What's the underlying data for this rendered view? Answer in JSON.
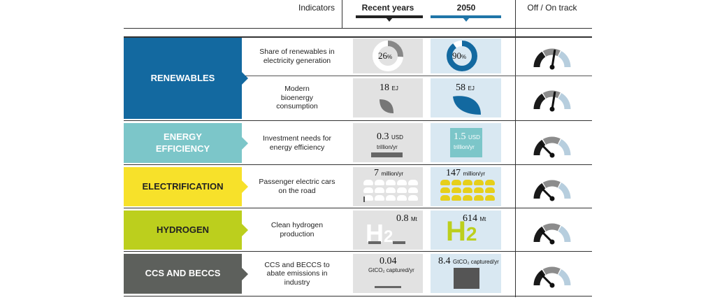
{
  "header": {
    "indicators": "Indicators",
    "recent_years": "Recent years",
    "year_2050": "2050",
    "track": "Off / On track"
  },
  "colors": {
    "renewables": "#1369a0",
    "efficiency": "#7cc6c9",
    "electrification": "#f7e12a",
    "hydrogen": "#bccf1d",
    "ccs": "#5d605c",
    "recent_marker": "#222222",
    "future_marker": "#1f75a8",
    "gauge_dark": "#1a1a1a",
    "gauge_mid": "#8c8c8c",
    "gauge_light": "#b7cede"
  },
  "categories": [
    {
      "id": "renewables",
      "label": "RENEWABLES"
    },
    {
      "id": "efficiency",
      "label_line1": "ENERGY",
      "label_line2": "EFFICIENCY"
    },
    {
      "id": "electrification",
      "label": "ELECTRIFICATION"
    },
    {
      "id": "hydrogen",
      "label": "HYDROGEN"
    },
    {
      "id": "ccs",
      "label": "CCS AND BECCS"
    }
  ],
  "rows": {
    "r1": {
      "indicator_l1": "Share of renewables in",
      "indicator_l2": "electricity generation",
      "recent_value": "26",
      "recent_unit": "%",
      "future_value": "90",
      "future_unit": "%",
      "recent_share": 26,
      "future_share": 90,
      "track_level": 0.55,
      "track_icon": "speedometer-icon"
    },
    "r2": {
      "indicator_l1": "Modern",
      "indicator_l2": "bioenergy",
      "indicator_l3": "consumption",
      "recent_value": "18",
      "recent_unit": "EJ",
      "future_value": "58",
      "future_unit": "EJ",
      "track_level": 0.55,
      "track_icon": "speedometer-icon"
    },
    "r3": {
      "indicator_l1": "Investment needs for",
      "indicator_l2": "energy efficiency",
      "recent_value": "0.3",
      "recent_unit_l1": "USD",
      "recent_unit_l2": "trillion/yr",
      "future_value": "1.5",
      "future_unit_l1": "USD",
      "future_unit_l2": "trillion/yr",
      "track_level": 0.25,
      "track_icon": "speedometer-icon"
    },
    "r4": {
      "indicator_l1": "Passenger electric cars",
      "indicator_l2": "on the road",
      "recent_value": "7",
      "recent_unit": "million/yr",
      "future_value": "147",
      "future_unit": "million/yr",
      "track_level": 0.25,
      "track_icon": "speedometer-icon"
    },
    "r5": {
      "indicator_l1": "Clean hydrogen",
      "indicator_l2": "production",
      "recent_value": "0.8",
      "recent_unit": "Mt",
      "future_value": "614",
      "future_unit": "Mt",
      "h2_text": "H",
      "h2_sub": "2",
      "track_level": 0.25,
      "track_icon": "speedometer-icon"
    },
    "r6": {
      "indicator_l1": "CCS and BECCS to",
      "indicator_l2": "abate emissions in",
      "indicator_l3": "industry",
      "recent_value": "0.04",
      "recent_unit": "GtCO₂ captured/yr",
      "future_value": "8.4",
      "future_unit": "GtCO₂ captured/yr",
      "track_level": 0.25,
      "track_icon": "speedometer-icon"
    }
  }
}
